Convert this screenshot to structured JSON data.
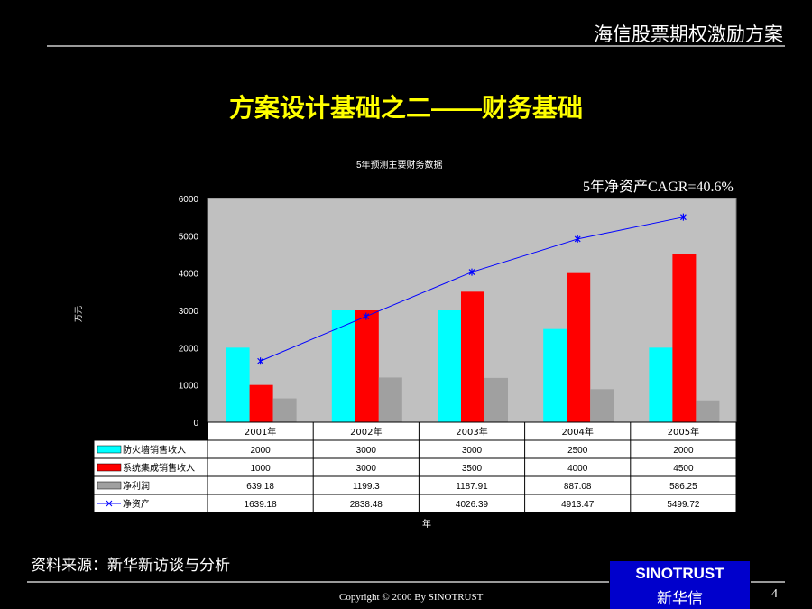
{
  "header": {
    "title": "海信股票期权激励方案"
  },
  "slide": {
    "title": "方案设计基础之二——财务基础"
  },
  "annotation": {
    "cagr": "5年净资产CAGR=40.6%"
  },
  "chart_data": {
    "type": "bar",
    "title": "5年预测主要财务数据",
    "xlabel": "年",
    "ylabel": "万元",
    "ylim": [
      0,
      6000
    ],
    "yticks": [
      "0",
      "1000",
      "2000",
      "3000",
      "4000",
      "5000",
      "6000"
    ],
    "categories": [
      "2001年",
      "2002年",
      "2003年",
      "2004年",
      "2005年"
    ],
    "series": [
      {
        "name": "防火墙销售收入",
        "kind": "bar",
        "color": "#00ffff",
        "values": [
          2000,
          3000,
          3000,
          2500,
          2000
        ],
        "labels": [
          "2000",
          "3000",
          "3000",
          "2500",
          "2000"
        ]
      },
      {
        "name": "系统集成销售收入",
        "kind": "bar",
        "color": "#ff0000",
        "values": [
          1000,
          3000,
          3500,
          4000,
          4500
        ],
        "labels": [
          "1000",
          "3000",
          "3500",
          "4000",
          "4500"
        ]
      },
      {
        "name": "净利润",
        "kind": "bar",
        "color": "#a0a0a0",
        "values": [
          639.18,
          1199.3,
          1187.91,
          887.08,
          586.25
        ],
        "labels": [
          "639.18",
          "1199.3",
          "1187.91",
          "887.08",
          "586.25"
        ]
      },
      {
        "name": "净资产",
        "kind": "line",
        "color": "#0000ff",
        "marker": "asterisk",
        "values": [
          1639.18,
          2838.48,
          4026.39,
          4913.47,
          5499.72
        ],
        "labels": [
          "1639.18",
          "2838.48",
          "4026.39",
          "4913.47",
          "5499.72"
        ]
      }
    ],
    "plot_background": "#c0c0c0",
    "grid": false,
    "legend": "data-table-below"
  },
  "footer": {
    "source": "资料来源：新华新访谈与分析",
    "copyright": "Copyright © 2000 By SINOTRUST",
    "logo_en": "SINOTRUST",
    "logo_cn": "新华信",
    "page": "4"
  }
}
